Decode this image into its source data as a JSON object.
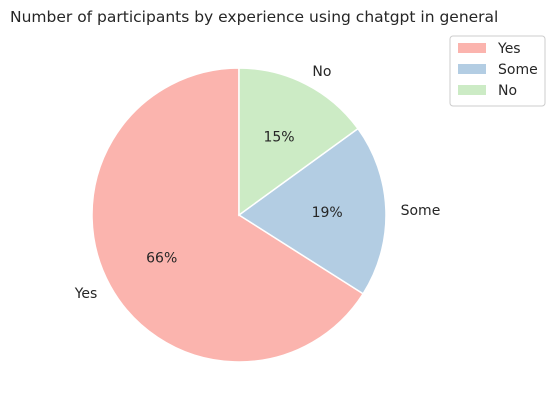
{
  "chart_data": {
    "type": "pie",
    "title": "Number of participants by experience using chatgpt in general",
    "categories": [
      "Yes",
      "Some",
      "No"
    ],
    "values": [
      66,
      19,
      15
    ],
    "value_labels": [
      "66%",
      "19%",
      "15%"
    ],
    "colors": [
      "#fbb4ae",
      "#b3cde3",
      "#ccebc5"
    ],
    "start_angle_deg": 90,
    "direction": "counterclockwise",
    "legend": {
      "placement": "top-right",
      "entries": [
        "Yes",
        "Some",
        "No"
      ]
    }
  }
}
